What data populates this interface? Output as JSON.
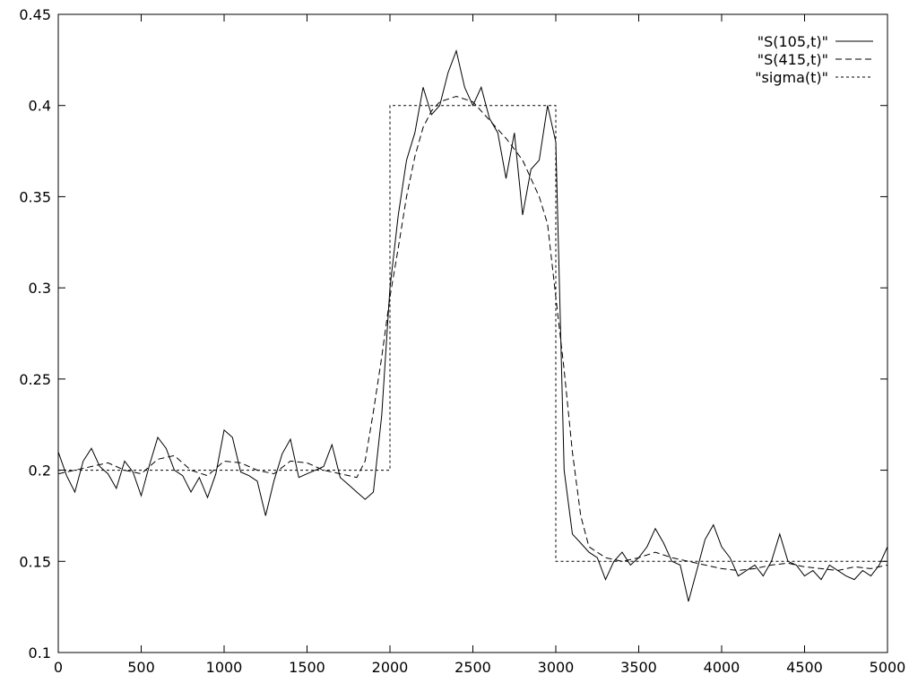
{
  "chart_data": {
    "type": "line",
    "title": "",
    "xlabel": "",
    "ylabel": "",
    "xlim": [
      0,
      5000
    ],
    "ylim": [
      0.1,
      0.45
    ],
    "xticks": [
      0,
      500,
      1000,
      1500,
      2000,
      2500,
      3000,
      3500,
      4000,
      4500,
      5000
    ],
    "yticks": [
      0.1,
      0.15,
      0.2,
      0.25,
      0.3,
      0.35,
      0.4,
      0.45
    ],
    "xtick_labels": [
      "0",
      "500",
      "1000",
      "1500",
      "2000",
      "2500",
      "3000",
      "3500",
      "4000",
      "4500",
      "5000"
    ],
    "ytick_labels": [
      "0.1",
      "0.15",
      "0.2",
      "0.25",
      "0.3",
      "0.35",
      "0.4",
      "0.45"
    ],
    "grid": false,
    "legend_position": "top-right",
    "series": [
      {
        "name": "\"S(105,t)\"",
        "style": "solid",
        "x": [
          0,
          50,
          100,
          150,
          200,
          250,
          300,
          350,
          400,
          450,
          500,
          550,
          600,
          650,
          700,
          750,
          800,
          850,
          900,
          950,
          1000,
          1050,
          1100,
          1150,
          1200,
          1250,
          1300,
          1350,
          1400,
          1450,
          1500,
          1550,
          1600,
          1650,
          1700,
          1750,
          1800,
          1850,
          1900,
          1950,
          2000,
          2050,
          2100,
          2150,
          2200,
          2250,
          2300,
          2350,
          2400,
          2450,
          2500,
          2550,
          2600,
          2650,
          2700,
          2750,
          2800,
          2850,
          2900,
          2950,
          3000,
          3050,
          3100,
          3150,
          3200,
          3250,
          3300,
          3350,
          3400,
          3450,
          3500,
          3550,
          3600,
          3650,
          3700,
          3750,
          3800,
          3850,
          3900,
          3950,
          4000,
          4050,
          4100,
          4150,
          4200,
          4250,
          4300,
          4350,
          4400,
          4450,
          4500,
          4550,
          4600,
          4650,
          4700,
          4750,
          4800,
          4850,
          4900,
          4950,
          5000
        ],
        "y": [
          0.21,
          0.197,
          0.188,
          0.205,
          0.212,
          0.202,
          0.198,
          0.19,
          0.205,
          0.199,
          0.186,
          0.203,
          0.218,
          0.212,
          0.2,
          0.197,
          0.188,
          0.196,
          0.185,
          0.198,
          0.222,
          0.218,
          0.199,
          0.197,
          0.194,
          0.175,
          0.194,
          0.209,
          0.217,
          0.196,
          0.198,
          0.2,
          0.202,
          0.214,
          0.196,
          0.192,
          0.188,
          0.184,
          0.188,
          0.23,
          0.3,
          0.34,
          0.37,
          0.385,
          0.41,
          0.395,
          0.4,
          0.418,
          0.43,
          0.41,
          0.4,
          0.41,
          0.393,
          0.385,
          0.36,
          0.385,
          0.34,
          0.365,
          0.37,
          0.4,
          0.38,
          0.2,
          0.165,
          0.16,
          0.155,
          0.152,
          0.14,
          0.15,
          0.155,
          0.148,
          0.152,
          0.158,
          0.168,
          0.16,
          0.15,
          0.148,
          0.128,
          0.145,
          0.162,
          0.17,
          0.158,
          0.152,
          0.142,
          0.145,
          0.148,
          0.142,
          0.15,
          0.165,
          0.15,
          0.148,
          0.142,
          0.145,
          0.14,
          0.148,
          0.145,
          0.142,
          0.14,
          0.145,
          0.142,
          0.148,
          0.158
        ]
      },
      {
        "name": "\"S(415,t)\"",
        "style": "dashed",
        "x": [
          0,
          100,
          200,
          300,
          400,
          500,
          600,
          700,
          800,
          900,
          1000,
          1100,
          1200,
          1300,
          1400,
          1500,
          1600,
          1700,
          1800,
          1850,
          1900,
          1950,
          2000,
          2050,
          2100,
          2150,
          2200,
          2250,
          2300,
          2400,
          2500,
          2600,
          2700,
          2800,
          2900,
          2950,
          3000,
          3050,
          3100,
          3150,
          3200,
          3300,
          3400,
          3500,
          3600,
          3700,
          3800,
          3900,
          4000,
          4100,
          4200,
          4300,
          4400,
          4500,
          4600,
          4700,
          4800,
          4900,
          5000
        ],
        "y": [
          0.198,
          0.2,
          0.202,
          0.204,
          0.2,
          0.198,
          0.206,
          0.208,
          0.2,
          0.197,
          0.205,
          0.204,
          0.2,
          0.198,
          0.205,
          0.204,
          0.2,
          0.198,
          0.196,
          0.205,
          0.232,
          0.262,
          0.295,
          0.322,
          0.35,
          0.372,
          0.388,
          0.397,
          0.402,
          0.405,
          0.402,
          0.392,
          0.382,
          0.37,
          0.35,
          0.335,
          0.295,
          0.255,
          0.21,
          0.175,
          0.158,
          0.152,
          0.15,
          0.152,
          0.155,
          0.152,
          0.15,
          0.148,
          0.146,
          0.145,
          0.146,
          0.148,
          0.149,
          0.147,
          0.146,
          0.145,
          0.147,
          0.146,
          0.148
        ]
      },
      {
        "name": "\"sigma(t)\"",
        "style": "dotted",
        "x": [
          0,
          2000,
          2000,
          3000,
          3000,
          5000
        ],
        "y": [
          0.2,
          0.2,
          0.4,
          0.4,
          0.15,
          0.15
        ]
      }
    ]
  }
}
